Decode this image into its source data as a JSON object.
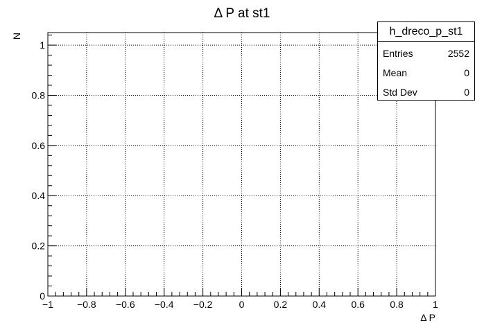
{
  "chart_data": {
    "type": "histogram",
    "title": "Δ P at st1",
    "xlabel": "Δ P",
    "ylabel": "N",
    "xlim": [
      -1,
      1
    ],
    "ylim": [
      0,
      1.05
    ],
    "x_ticks": [
      "−1",
      "−0.8",
      "−0.6",
      "−0.4",
      "−0.2",
      "0",
      "0.2",
      "0.4",
      "0.6",
      "0.8",
      "1"
    ],
    "y_ticks": [
      "0",
      "0.2",
      "0.4",
      "0.6",
      "0.8",
      "1"
    ],
    "grid": true,
    "bins": [],
    "values": []
  },
  "stats": {
    "name": "h_dreco_p_st1",
    "rows": [
      {
        "key": "Entries",
        "value": "2552"
      },
      {
        "key": "Mean",
        "value": "0"
      },
      {
        "key": "Std Dev",
        "value": "0"
      }
    ]
  }
}
